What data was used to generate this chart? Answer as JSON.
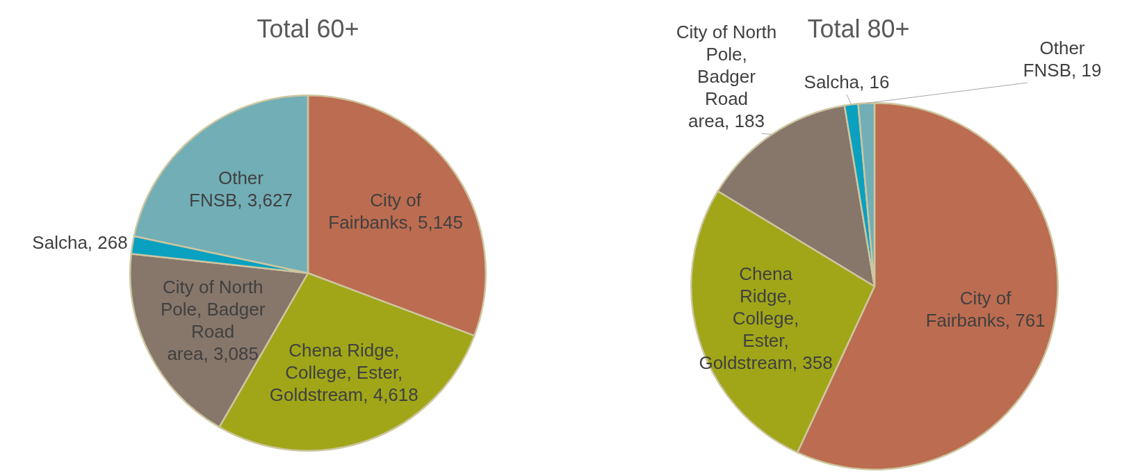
{
  "chart_data": [
    {
      "type": "pie",
      "title": "Total 60+",
      "categories": [
        "City of Fairbanks",
        "Chena Ridge, College, Ester, Goldstream",
        "City of North Pole, Badger Road area",
        "Salcha",
        "Other FNSB"
      ],
      "values": [
        5145,
        4618,
        3085,
        268,
        3627
      ],
      "value_labels": [
        "5,145",
        "4,618",
        "3,085",
        "268",
        "3,627"
      ],
      "colors": [
        "#bc6c50",
        "#a0a618",
        "#87766a",
        "#0aa0c0",
        "#72aeb6"
      ]
    },
    {
      "type": "pie",
      "title": "Total 80+",
      "categories": [
        "City of Fairbanks",
        "Chena Ridge, College, Ester, Goldstream",
        "City of North Pole, Badger Road area",
        "Salcha",
        "Other FNSB"
      ],
      "values": [
        761,
        358,
        183,
        16,
        19
      ],
      "value_labels": [
        "761",
        "358",
        "183",
        "16",
        "19"
      ],
      "colors": [
        "#bc6c50",
        "#a0a618",
        "#87766a",
        "#0aa0c0",
        "#72aeb6"
      ]
    }
  ]
}
